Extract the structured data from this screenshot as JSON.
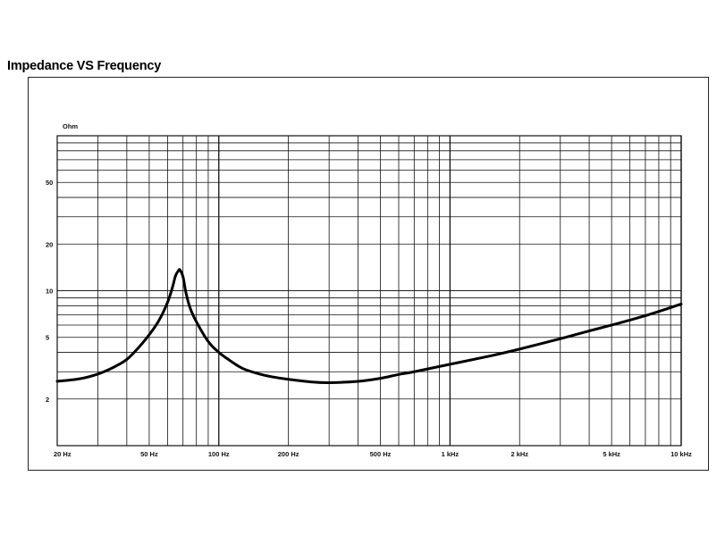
{
  "title": "Impedance VS Frequency",
  "chart_data": {
    "type": "line",
    "title": "Impedance VS Frequency",
    "ylabel": "Ohm",
    "xscale": "log",
    "yscale": "log",
    "xlim": [
      20,
      10000
    ],
    "ylim": [
      1,
      100
    ],
    "grid": true,
    "x_ticks": [
      {
        "value": 20,
        "label": "20 Hz"
      },
      {
        "value": 50,
        "label": "50 Hz"
      },
      {
        "value": 100,
        "label": "100 Hz"
      },
      {
        "value": 200,
        "label": "200 Hz"
      },
      {
        "value": 500,
        "label": "500 Hz"
      },
      {
        "value": 1000,
        "label": "1 kHz"
      },
      {
        "value": 2000,
        "label": "2 kHz"
      },
      {
        "value": 5000,
        "label": "5 kHz"
      },
      {
        "value": 10000,
        "label": "10 kHz"
      }
    ],
    "y_ticks": [
      {
        "value": 2,
        "label": "2"
      },
      {
        "value": 5,
        "label": "5"
      },
      {
        "value": 10,
        "label": "10"
      },
      {
        "value": 20,
        "label": "20"
      },
      {
        "value": 50,
        "label": "50"
      }
    ],
    "series": [
      {
        "x": [
          20,
          25,
          30,
          35,
          40,
          45,
          50,
          55,
          60,
          63,
          65,
          67,
          68,
          70,
          72,
          75,
          80,
          90,
          100,
          110,
          120,
          130,
          150,
          170,
          200,
          250,
          300,
          400,
          500,
          600,
          700,
          1000,
          1500,
          2000,
          3000,
          4000,
          5000,
          7000,
          10000
        ],
        "y": [
          2.6,
          2.7,
          2.9,
          3.2,
          3.6,
          4.3,
          5.2,
          6.4,
          8.4,
          10.5,
          12.5,
          13.5,
          13.6,
          12.3,
          9.8,
          7.8,
          6.3,
          4.7,
          4.0,
          3.6,
          3.3,
          3.1,
          2.9,
          2.78,
          2.68,
          2.58,
          2.55,
          2.6,
          2.72,
          2.88,
          3.0,
          3.35,
          3.8,
          4.2,
          4.9,
          5.5,
          6.0,
          6.9,
          8.2
        ]
      }
    ]
  }
}
